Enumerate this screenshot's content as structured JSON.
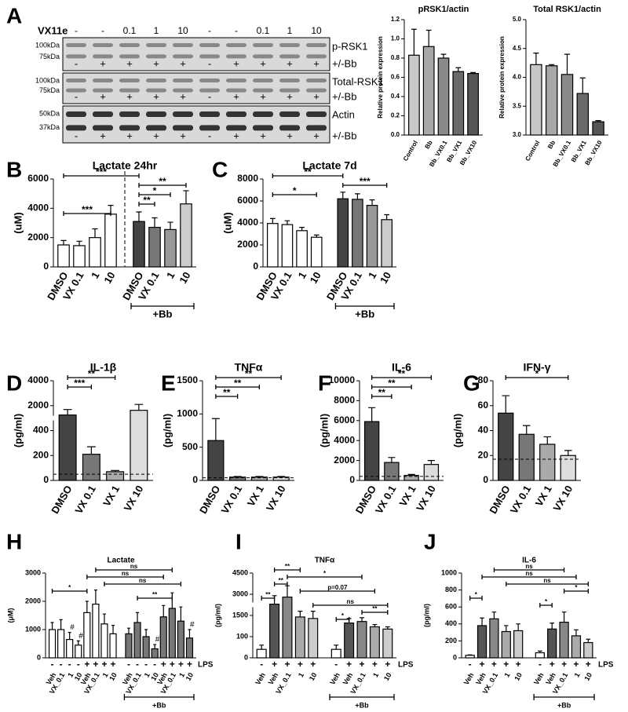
{
  "blot": {
    "panel": "A",
    "treatment_label": "VX11e",
    "doses": [
      "-",
      "-",
      "0.1",
      "1",
      "10",
      "-",
      "-",
      "0.1",
      "1",
      "10"
    ],
    "rows": [
      {
        "markers": [
          "100kDa",
          "75kDa"
        ],
        "protein": "p-RSK1",
        "bb_label": "+/-Bb",
        "bb": [
          "-",
          "+",
          "+",
          "+",
          "+",
          "-",
          "+",
          "+",
          "+",
          "+"
        ]
      },
      {
        "markers": [
          "100kDa",
          "75kDa"
        ],
        "protein": "Total-RSK1",
        "bb_label": "+/-Bb",
        "bb": [
          "-",
          "+",
          "+",
          "+",
          "+",
          "-",
          "+",
          "+",
          "+",
          "+"
        ]
      },
      {
        "markers": [
          "50kDa",
          "37kDa"
        ],
        "protein": "Actin",
        "bb_label": "+/-Bb",
        "bb": [
          "-",
          "+",
          "+",
          "+",
          "+",
          "-",
          "+",
          "+",
          "+",
          "+"
        ]
      }
    ]
  },
  "chart_data": [
    {
      "type": "bar",
      "title": "pRSK1/actin",
      "y_label": "Relative protein expression",
      "categories": [
        "Control",
        "Bb",
        "Bb_VX0.1",
        "Bb_VX1",
        "Bb_VX10"
      ],
      "values": [
        0.83,
        0.92,
        0.8,
        0.66,
        0.64
      ],
      "errors": [
        0.27,
        0.17,
        0.04,
        0.04,
        0.01
      ],
      "colors": [
        "#c8c8c8",
        "#a8a8a8",
        "#8a8a8a",
        "#6a6a6a",
        "#555555"
      ],
      "ylim": [
        0,
        1.2
      ],
      "yticks": [
        {
          "value": 0,
          "label": "0.0"
        },
        {
          "value": 0.2,
          "label": "0.2"
        },
        {
          "value": 0.4,
          "label": "0.4"
        },
        {
          "value": 0.6,
          "label": "0.6"
        },
        {
          "value": 0.8,
          "label": "0.8"
        },
        {
          "value": 1,
          "label": "1.0"
        },
        {
          "value": 1.2,
          "label": "1.2"
        }
      ]
    },
    {
      "type": "bar",
      "title": "Total RSK1/actin",
      "y_label": "Relative protein expression",
      "categories": [
        "Control",
        "Bb",
        "Bb_VX0.1",
        "Bb_VX1",
        "Bb_VX10"
      ],
      "values": [
        4.22,
        4.2,
        4.05,
        3.72,
        3.23
      ],
      "errors": [
        0.2,
        0.02,
        0.35,
        0.27,
        0.02
      ],
      "colors": [
        "#c8c8c8",
        "#a8a8a8",
        "#8a8a8a",
        "#6a6a6a",
        "#555555"
      ],
      "ylim": [
        3,
        5
      ],
      "yticks": [
        {
          "value": 3,
          "label": "3.0"
        },
        {
          "value": 3.5,
          "label": "3.5"
        },
        {
          "value": 4,
          "label": "4.0"
        },
        {
          "value": 4.5,
          "label": "4.5"
        },
        {
          "value": 5,
          "label": "5.0"
        }
      ]
    },
    {
      "type": "bar",
      "panel": "B",
      "title": "Lactate 24hr",
      "y_label": "(uM)",
      "categories": [
        "DMSO",
        "VX 0.1",
        "1",
        "10",
        "DMSO",
        "VX 0.1",
        "1",
        "10"
      ],
      "values": [
        1500,
        1450,
        2000,
        3600,
        3100,
        2700,
        2550,
        4300
      ],
      "errors": [
        300,
        300,
        600,
        600,
        650,
        650,
        500,
        900
      ],
      "colors": [
        "#ffffff",
        "#ffffff",
        "#ffffff",
        "#ffffff",
        "#444444",
        "#777777",
        "#999999",
        "#cccccc"
      ],
      "ylim": [
        0,
        6000
      ],
      "yticks": [
        0,
        2000,
        4000,
        6000
      ],
      "divider": true,
      "bb_group": {
        "label": "+Bb",
        "from": 4,
        "to": 7
      },
      "annotations": [
        {
          "text": "***",
          "between": [
            0,
            4
          ]
        },
        {
          "text": "**",
          "between": [
            4,
            7
          ]
        },
        {
          "text": "*",
          "between": [
            4,
            6
          ]
        },
        {
          "text": "**",
          "between": [
            4,
            5
          ]
        },
        {
          "text": "***",
          "between": [
            0,
            3
          ]
        }
      ]
    },
    {
      "type": "bar",
      "panel": "C",
      "title": "Lactate 7d",
      "y_label": "(uM)",
      "categories": [
        "DMSO",
        "VX 0.1",
        "1",
        "10",
        "DMSO",
        "VX 0.1",
        "1",
        "10"
      ],
      "values": [
        3950,
        3850,
        3300,
        2700,
        6200,
        6150,
        5600,
        4300
      ],
      "errors": [
        450,
        350,
        300,
        200,
        600,
        500,
        500,
        450
      ],
      "colors": [
        "#ffffff",
        "#ffffff",
        "#ffffff",
        "#ffffff",
        "#444444",
        "#777777",
        "#999999",
        "#cccccc"
      ],
      "ylim": [
        0,
        8000
      ],
      "yticks": [
        0,
        2000,
        4000,
        6000,
        8000
      ],
      "bb_group": {
        "label": "+Bb",
        "from": 4,
        "to": 7
      },
      "annotations": [
        {
          "text": "**",
          "between": [
            0,
            4
          ]
        },
        {
          "text": "***",
          "between": [
            4,
            7
          ]
        },
        {
          "text": "*",
          "between": [
            0,
            3
          ]
        }
      ]
    },
    {
      "type": "bar",
      "panel": "D",
      "title": "IL-1β",
      "y_label": "(pg/ml)",
      "categories": [
        "DMSO",
        "VX 0.1",
        "VX 1",
        "VX 10"
      ],
      "values": [
        1400,
        210,
        70,
        1700
      ],
      "errors": [
        350,
        60,
        10,
        400
      ],
      "colors": [
        "#444444",
        "#777777",
        "#aaaaaa",
        "#dddddd"
      ],
      "ylim": [
        0,
        4000
      ],
      "yticks": [
        0,
        200,
        400,
        2000,
        4000
      ],
      "yscale": "broken",
      "hline": 50,
      "annotations": [
        {
          "text": "**",
          "between": [
            0,
            2
          ]
        },
        {
          "text": "***",
          "between": [
            0,
            1
          ]
        }
      ]
    },
    {
      "type": "bar",
      "panel": "E",
      "title": "TNFα",
      "y_label": "(pg/ml)",
      "categories": [
        "DMSO",
        "VX 0.1",
        "VX 1",
        "VX 10"
      ],
      "values": [
        600,
        50,
        50,
        50
      ],
      "errors": [
        330,
        10,
        10,
        10
      ],
      "colors": [
        "#444444",
        "#777777",
        "#aaaaaa",
        "#dddddd"
      ],
      "ylim": [
        0,
        1500
      ],
      "yticks": [
        0,
        500,
        1000,
        1500
      ],
      "hline": 40,
      "annotations": [
        {
          "text": "**",
          "between": [
            0,
            3
          ]
        },
        {
          "text": "**",
          "between": [
            0,
            2
          ]
        },
        {
          "text": "**",
          "between": [
            0,
            1
          ]
        }
      ]
    },
    {
      "type": "bar",
      "panel": "F",
      "title": "IL-6",
      "y_label": "(pg/ml)",
      "categories": [
        "DMSO",
        "VX 0.1",
        "VX 1",
        "VX 10"
      ],
      "values": [
        5900,
        1800,
        500,
        1600
      ],
      "errors": [
        1400,
        500,
        100,
        400
      ],
      "colors": [
        "#444444",
        "#777777",
        "#aaaaaa",
        "#dddddd"
      ],
      "ylim": [
        0,
        10000
      ],
      "yticks": [
        0,
        2000,
        4000,
        6000,
        8000,
        10000
      ],
      "hline": 400,
      "annotations": [
        {
          "text": "**",
          "between": [
            0,
            3
          ]
        },
        {
          "text": "**",
          "between": [
            0,
            2
          ]
        },
        {
          "text": "**",
          "between": [
            0,
            1
          ]
        }
      ]
    },
    {
      "type": "bar",
      "panel": "G",
      "title": "IFN-γ",
      "y_label": "(pg/ml)",
      "categories": [
        "DMSO",
        "VX 0.1",
        "VX 1",
        "VX 10"
      ],
      "values": [
        54,
        37,
        29,
        20
      ],
      "errors": [
        14,
        7,
        6,
        4
      ],
      "colors": [
        "#444444",
        "#777777",
        "#aaaaaa",
        "#dddddd"
      ],
      "ylim": [
        0,
        80
      ],
      "yticks": [
        0,
        20,
        40,
        60,
        80
      ],
      "hline": 17,
      "annotations": [
        {
          "text": "*",
          "between": [
            0,
            3
          ]
        }
      ]
    },
    {
      "type": "bar",
      "panel": "H",
      "title": "Lactate",
      "y_label": "(μM)",
      "categories": [
        "Veh",
        "VX_0.1",
        "1",
        "10",
        "Veh",
        "VX_0.1",
        "1",
        "10",
        "Veh",
        "VX_0.1",
        "1",
        "10",
        "Veh",
        "VX_0.1",
        "1",
        "10"
      ],
      "lps_label": "LPS",
      "lps": [
        "-",
        "-",
        "-",
        "-",
        "+",
        "+",
        "+",
        "+",
        "-",
        "-",
        "-",
        "-",
        "+",
        "+",
        "+",
        "+"
      ],
      "values": [
        1000,
        1000,
        650,
        450,
        1600,
        1900,
        1200,
        850,
        850,
        1250,
        750,
        320,
        1450,
        1750,
        1300,
        700
      ],
      "errors": [
        250,
        350,
        250,
        150,
        400,
        500,
        350,
        300,
        200,
        350,
        250,
        150,
        400,
        550,
        500,
        300
      ],
      "colors": [
        "#ffffff",
        "#ffffff",
        "#ffffff",
        "#ffffff",
        "#ffffff",
        "#ffffff",
        "#ffffff",
        "#ffffff",
        "#777777",
        "#777777",
        "#777777",
        "#777777",
        "#777777",
        "#777777",
        "#777777",
        "#777777"
      ],
      "ylim": [
        0,
        3000
      ],
      "yticks": [
        0,
        1000,
        2000,
        3000
      ],
      "hash": {
        "label": "#",
        "bars": [
          2,
          3,
          11,
          15
        ]
      },
      "bb_group": {
        "label": "+Bb",
        "from": 8,
        "to": 15
      },
      "annotations": [
        {
          "text": "ns",
          "between": [
            5,
            13
          ]
        },
        {
          "text": "ns",
          "between": [
            4,
            12
          ]
        },
        {
          "text": "ns",
          "between": [
            6,
            14
          ]
        },
        {
          "text": "*",
          "between": [
            0,
            4
          ]
        },
        {
          "text": "**",
          "between": [
            9,
            13
          ]
        }
      ]
    },
    {
      "type": "bar",
      "panel": "I",
      "title": "TNFα",
      "y_label": "(pg/ml)",
      "categories": [
        "Veh",
        "Veh",
        "VX_0.1",
        "1",
        "10",
        "Veh",
        "Veh",
        "VX_0.1",
        "1",
        "10"
      ],
      "lps_label": "LPS",
      "lps": [
        "-",
        "+",
        "+",
        "+",
        "+",
        "-",
        "+",
        "+",
        "+",
        "+"
      ],
      "values": [
        40,
        2300,
        2800,
        1400,
        1300,
        40,
        1000,
        1100,
        750,
        600
      ],
      "errors": [
        20,
        600,
        800,
        400,
        500,
        20,
        300,
        250,
        150,
        150
      ],
      "colors": [
        "#ffffff",
        "#555555",
        "#888888",
        "#aaaaaa",
        "#cccccc",
        "#ffffff",
        "#555555",
        "#888888",
        "#aaaaaa",
        "#cccccc"
      ],
      "ylim": [
        0,
        4500
      ],
      "yticks": [
        0,
        100,
        1500,
        3000,
        4500
      ],
      "yscale": "broken",
      "bb_group": {
        "label": "+Bb",
        "from": 5,
        "to": 9
      },
      "annotations": [
        {
          "text": "**",
          "between": [
            1,
            3
          ]
        },
        {
          "text": "*",
          "between": [
            2,
            7
          ]
        },
        {
          "text": "**",
          "between": [
            1,
            2
          ]
        },
        {
          "text": "p=0.07",
          "between": [
            3,
            8
          ]
        },
        {
          "text": "**",
          "between": [
            0,
            1
          ]
        },
        {
          "text": "ns",
          "between": [
            4,
            9
          ]
        },
        {
          "text": "**",
          "between": [
            7,
            9
          ]
        },
        {
          "text": "*",
          "between": [
            5,
            6
          ]
        }
      ]
    },
    {
      "type": "bar",
      "panel": "J",
      "title": "IL-6",
      "y_label": "(pg/ml)",
      "categories": [
        "Veh",
        "Veh",
        "VX_0.1",
        "1",
        "10",
        "Veh",
        "Veh",
        "VX_0.1",
        "1",
        "10"
      ],
      "lps_label": "LPS",
      "lps": [
        "-",
        "+",
        "+",
        "+",
        "+",
        "-",
        "+",
        "+",
        "+",
        "+"
      ],
      "values": [
        30,
        380,
        460,
        310,
        320,
        60,
        340,
        420,
        260,
        180
      ],
      "errors": [
        5,
        90,
        80,
        70,
        80,
        20,
        70,
        120,
        70,
        40
      ],
      "colors": [
        "#ffffff",
        "#555555",
        "#888888",
        "#aaaaaa",
        "#cccccc",
        "#ffffff",
        "#555555",
        "#888888",
        "#aaaaaa",
        "#cccccc"
      ],
      "ylim": [
        0,
        1000
      ],
      "yticks": [
        0,
        200,
        400,
        600,
        800,
        1000
      ],
      "bb_group": {
        "label": "+Bb",
        "from": 5,
        "to": 9
      },
      "annotations": [
        {
          "text": "ns",
          "between": [
            2,
            7
          ]
        },
        {
          "text": "ns",
          "between": [
            1,
            8
          ]
        },
        {
          "text": "ns",
          "between": [
            3,
            9
          ]
        },
        {
          "text": "*",
          "between": [
            7,
            9
          ]
        },
        {
          "text": "*",
          "between": [
            0,
            1
          ]
        },
        {
          "text": "*",
          "between": [
            5,
            6
          ]
        }
      ]
    }
  ]
}
